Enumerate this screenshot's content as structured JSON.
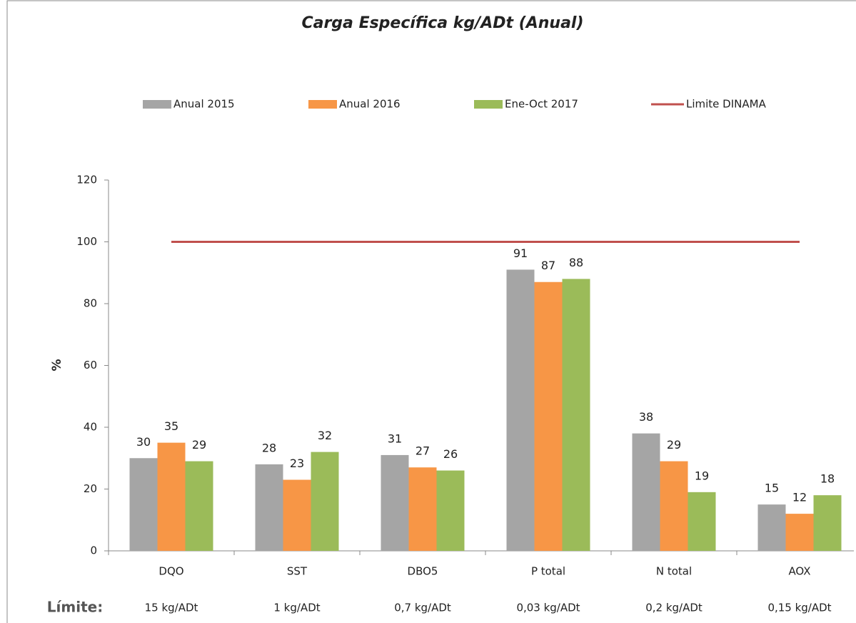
{
  "chart_data": {
    "type": "bar",
    "title": "Carga Específica kg/ADt (Anual)",
    "ylabel": "%",
    "categories": [
      "DQO",
      "SST",
      "DBO5",
      "P total",
      "N total",
      "AOX"
    ],
    "series": [
      {
        "name": "Anual 2015",
        "color": "#a5a5a5",
        "values": [
          30,
          28,
          31,
          91,
          38,
          15
        ]
      },
      {
        "name": "Anual 2016",
        "color": "#f79646",
        "values": [
          35,
          23,
          27,
          87,
          29,
          12
        ]
      },
      {
        "name": "Ene-Oct 2017",
        "color": "#9bbb59",
        "values": [
          29,
          32,
          26,
          88,
          19,
          18
        ]
      },
      {
        "name": "Limite DINAMA",
        "color": "#c0504d",
        "type": "line",
        "values": [
          100,
          100,
          100,
          100,
          100,
          100
        ]
      }
    ],
    "ylim": [
      0,
      120
    ],
    "yticks": [
      0,
      20,
      40,
      60,
      80,
      100,
      120
    ],
    "limits_label": "Límite:",
    "limits": [
      "15 kg/ADt",
      "1 kg/ADt",
      "0,7 kg/ADt",
      "0,03 kg/ADt",
      "0,2 kg/ADt",
      "0,15 kg/ADt"
    ],
    "legend": "top"
  }
}
